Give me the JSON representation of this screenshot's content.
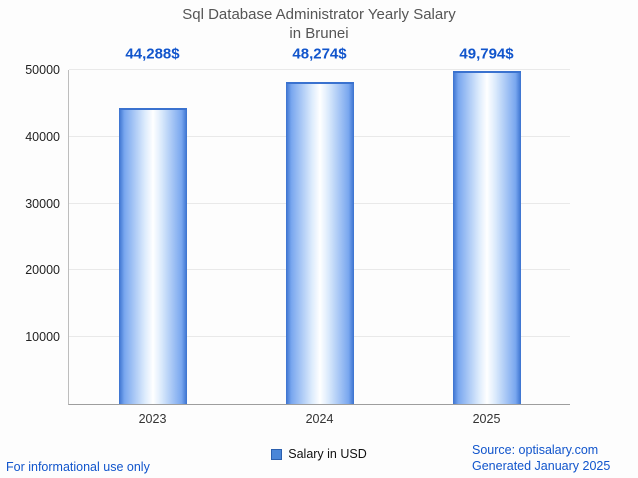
{
  "title": {
    "line1": "Sql Database Administrator Yearly Salary",
    "line2": "in Brunei"
  },
  "chart_data": {
    "type": "bar",
    "title": "Sql Database Administrator Yearly Salary in Brunei",
    "categories": [
      "2023",
      "2024",
      "2025"
    ],
    "values": [
      44288,
      48274,
      49794
    ],
    "value_labels": [
      "44,288$",
      "48,274$",
      "49,794$"
    ],
    "series_name": "Salary in USD",
    "ylim": [
      0,
      50000
    ],
    "yticks": [
      10000,
      20000,
      30000,
      40000,
      50000
    ],
    "grid": "horizontal",
    "legend_position": "bottom-center",
    "bar_edge_color": "#3a72cf",
    "bar_center_color": "#ffffff",
    "value_label_color": "#1155cc",
    "title_color": "#555555"
  },
  "legend": {
    "label": "Salary in USD"
  },
  "footer": {
    "disclaimer": "For informational use only",
    "source": "Source: optisalary.com",
    "generated": "Generated January 2025"
  }
}
